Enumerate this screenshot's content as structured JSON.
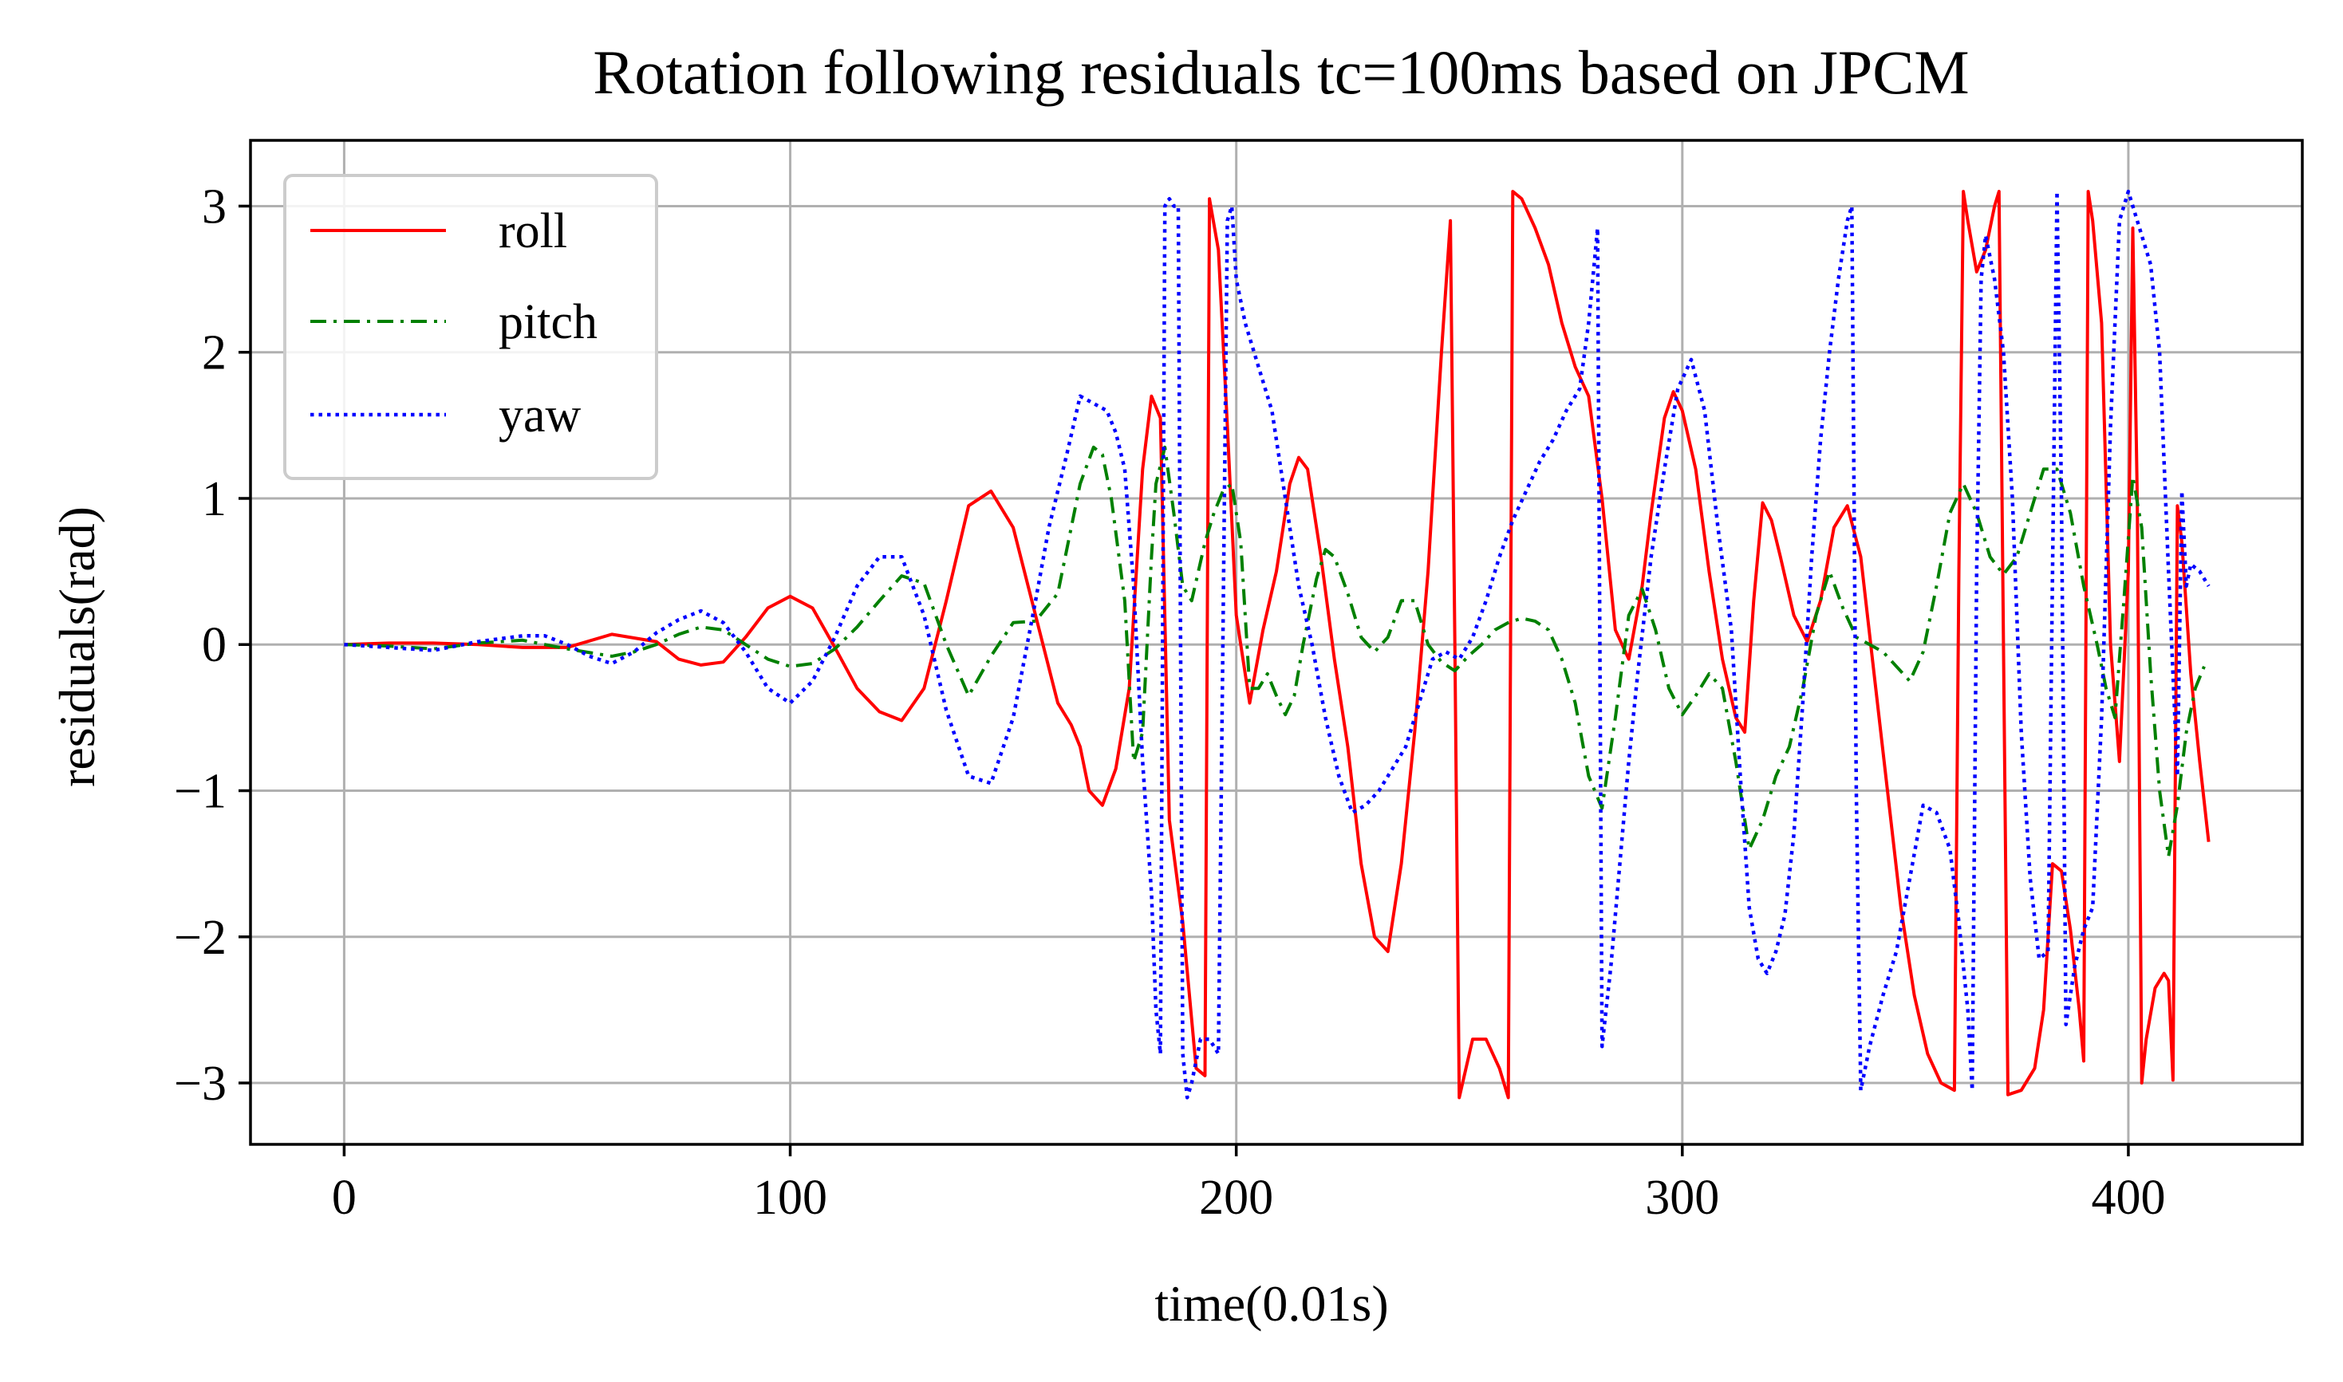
{
  "chart_data": {
    "type": "line",
    "title": "Rotation following residuals tc=100ms based on JPCM",
    "xlabel": "time(0.01s)",
    "ylabel": "residuals(rad)",
    "xlim": [
      -21,
      439
    ],
    "ylim": [
      -3.42,
      3.45
    ],
    "xticks": [
      0,
      100,
      200,
      300,
      400
    ],
    "xtick_labels": [
      "0",
      "100",
      "200",
      "300",
      "400"
    ],
    "yticks": [
      -3,
      -2,
      -1,
      0,
      1,
      2,
      3
    ],
    "ytick_labels": [
      "−3",
      "−2",
      "−1",
      "0",
      "1",
      "2",
      "3"
    ],
    "grid": true,
    "legend_position": "top-left",
    "series": [
      {
        "name": "roll",
        "color": "#ff0000",
        "linestyle": "solid",
        "x": [
          0,
          10,
          20,
          30,
          40,
          50,
          60,
          70,
          75,
          80,
          85,
          90,
          95,
          100,
          105,
          110,
          115,
          120,
          125,
          130,
          135,
          140,
          145,
          150,
          155,
          160,
          163,
          165,
          167,
          170,
          173,
          176,
          179,
          181,
          183,
          185,
          188,
          191,
          193,
          194,
          196,
          198,
          200,
          203,
          206,
          209,
          212,
          214,
          216,
          219,
          222,
          225,
          228,
          231,
          234,
          237,
          240,
          243,
          246,
          248,
          249,
          250,
          253,
          256,
          259,
          261,
          262,
          264,
          267,
          270,
          273,
          276,
          279,
          282,
          285,
          288,
          291,
          293,
          296,
          298,
          300,
          303,
          306,
          309,
          312,
          314,
          316,
          318,
          320,
          322,
          325,
          328,
          331,
          334,
          337,
          340,
          343,
          346,
          349,
          352,
          355,
          358,
          361,
          362,
          363,
          364,
          366,
          368,
          370,
          371,
          372,
          373,
          376,
          379,
          381,
          383,
          385,
          387,
          389,
          390,
          391,
          392,
          394,
          396,
          398,
          400,
          401,
          402,
          403,
          404,
          406,
          408,
          409,
          410,
          411,
          412,
          414,
          416,
          418
        ],
        "y": [
          0,
          0.01,
          0.01,
          0.0,
          -0.02,
          -0.02,
          0.07,
          0.02,
          -0.1,
          -0.14,
          -0.12,
          0.05,
          0.25,
          0.33,
          0.25,
          -0.02,
          -0.3,
          -0.46,
          -0.52,
          -0.3,
          0.3,
          0.95,
          1.05,
          0.8,
          0.2,
          -0.4,
          -0.55,
          -0.7,
          -1.0,
          -1.1,
          -0.85,
          -0.3,
          1.2,
          1.7,
          1.55,
          -1.2,
          -1.9,
          -2.9,
          -2.95,
          3.05,
          2.7,
          1.5,
          0.2,
          -0.4,
          0.1,
          0.5,
          1.1,
          1.28,
          1.2,
          0.6,
          -0.1,
          -0.7,
          -1.5,
          -2.0,
          -2.1,
          -1.5,
          -0.6,
          0.5,
          2.0,
          2.9,
          0.0,
          -3.1,
          -2.7,
          -2.7,
          -2.9,
          -3.1,
          3.1,
          3.05,
          2.85,
          2.6,
          2.2,
          1.9,
          1.7,
          1.0,
          0.1,
          -0.1,
          0.4,
          0.9,
          1.55,
          1.73,
          1.6,
          1.2,
          0.5,
          -0.1,
          -0.5,
          -0.6,
          0.3,
          0.97,
          0.85,
          0.6,
          0.2,
          0.02,
          0.3,
          0.8,
          0.95,
          0.6,
          -0.2,
          -1.0,
          -1.8,
          -2.4,
          -2.8,
          -3.0,
          -3.05,
          0.5,
          3.1,
          2.9,
          2.55,
          2.7,
          3.0,
          3.1,
          0.0,
          -3.08,
          -3.05,
          -2.9,
          -2.5,
          -1.5,
          -1.55,
          -1.95,
          -2.5,
          -2.85,
          3.1,
          2.9,
          2.2,
          0.0,
          -0.8,
          0.5,
          2.85,
          1.0,
          -3.0,
          -2.7,
          -2.35,
          -2.25,
          -2.3,
          -2.98,
          0.95,
          0.7,
          -0.2,
          -0.8,
          -1.35
        ]
      },
      {
        "name": "pitch",
        "color": "#008000",
        "linestyle": "dashdot",
        "x": [
          0,
          10,
          20,
          30,
          40,
          50,
          60,
          65,
          70,
          75,
          80,
          85,
          90,
          95,
          100,
          105,
          110,
          115,
          120,
          125,
          130,
          135,
          140,
          145,
          150,
          155,
          160,
          163,
          165,
          168,
          170,
          172,
          175,
          177,
          179,
          181,
          182,
          184,
          186,
          188,
          190,
          193,
          195,
          197,
          199,
          201,
          203,
          205,
          207,
          209,
          211,
          213,
          215,
          218,
          220,
          222,
          225,
          228,
          231,
          234,
          237,
          240,
          243,
          246,
          249,
          252,
          255,
          258,
          261,
          264,
          267,
          270,
          273,
          276,
          279,
          282,
          285,
          288,
          291,
          294,
          297,
          300,
          303,
          306,
          309,
          312,
          315,
          318,
          321,
          324,
          327,
          330,
          333,
          336,
          339,
          342,
          345,
          348,
          351,
          354,
          357,
          360,
          363,
          366,
          369,
          372,
          375,
          378,
          381,
          384,
          387,
          390,
          393,
          395,
          397,
          399,
          401,
          403,
          405,
          407,
          409,
          411,
          413,
          415,
          417
        ],
        "y": [
          0,
          -0.01,
          -0.03,
          0.01,
          0.03,
          -0.03,
          -0.08,
          -0.05,
          0.0,
          0.07,
          0.12,
          0.1,
          0.0,
          -0.1,
          -0.15,
          -0.13,
          -0.03,
          0.12,
          0.3,
          0.47,
          0.42,
          0.0,
          -0.35,
          -0.08,
          0.15,
          0.16,
          0.35,
          0.8,
          1.1,
          1.35,
          1.3,
          1.0,
          0.3,
          -0.8,
          -0.6,
          0.6,
          1.1,
          1.35,
          0.9,
          0.4,
          0.3,
          0.7,
          0.9,
          1.05,
          1.1,
          0.7,
          -0.3,
          -0.3,
          -0.2,
          -0.35,
          -0.48,
          -0.35,
          0.0,
          0.45,
          0.65,
          0.6,
          0.35,
          0.05,
          -0.05,
          0.05,
          0.3,
          0.3,
          0.0,
          -0.12,
          -0.18,
          -0.08,
          0.0,
          0.1,
          0.15,
          0.18,
          0.16,
          0.1,
          -0.1,
          -0.4,
          -0.9,
          -1.12,
          -0.5,
          0.2,
          0.38,
          0.1,
          -0.3,
          -0.48,
          -0.35,
          -0.2,
          -0.3,
          -0.8,
          -1.4,
          -1.2,
          -0.9,
          -0.7,
          -0.3,
          0.2,
          0.5,
          0.25,
          0.05,
          0.0,
          -0.05,
          -0.15,
          -0.25,
          -0.05,
          0.4,
          0.9,
          1.1,
          0.9,
          0.6,
          0.48,
          0.6,
          0.9,
          1.2,
          1.2,
          0.9,
          0.4,
          0.0,
          -0.3,
          -0.5,
          0.3,
          1.15,
          0.8,
          -0.2,
          -1.0,
          -1.45,
          -1.1,
          -0.6,
          -0.3,
          -0.15
        ]
      },
      {
        "name": "yaw",
        "color": "#0000ff",
        "linestyle": "dotted",
        "x": [
          0,
          10,
          20,
          30,
          40,
          45,
          50,
          55,
          60,
          65,
          70,
          75,
          80,
          85,
          90,
          95,
          100,
          105,
          110,
          115,
          120,
          125,
          130,
          135,
          140,
          145,
          150,
          155,
          158,
          162,
          165,
          168,
          171,
          173,
          175,
          177,
          179,
          181,
          182,
          183,
          184,
          185,
          186,
          187,
          188,
          189,
          190,
          192,
          194,
          196,
          197,
          198,
          199,
          200,
          202,
          205,
          208,
          211,
          214,
          217,
          220,
          223,
          226,
          229,
          232,
          235,
          238,
          241,
          244,
          247,
          250,
          253,
          256,
          259,
          262,
          265,
          268,
          271,
          274,
          277,
          279,
          281,
          282,
          284,
          286,
          288,
          290,
          293,
          296,
          299,
          302,
          305,
          308,
          311,
          313,
          315,
          317,
          319,
          321,
          323,
          325,
          327,
          329,
          331,
          333,
          335,
          337,
          338,
          339,
          340,
          342,
          345,
          348,
          351,
          354,
          357,
          360,
          362,
          364,
          365,
          366,
          367,
          368,
          370,
          372,
          374,
          376,
          378,
          380,
          382,
          383,
          384,
          385,
          386,
          388,
          390,
          392,
          394,
          396,
          398,
          400,
          401,
          402,
          403,
          404,
          405,
          407,
          409,
          411,
          412,
          413,
          414,
          416,
          418
        ],
        "y": [
          0,
          -0.02,
          -0.04,
          0.02,
          0.06,
          0.06,
          0.0,
          -0.08,
          -0.13,
          -0.05,
          0.08,
          0.17,
          0.23,
          0.15,
          -0.05,
          -0.3,
          -0.4,
          -0.25,
          0.05,
          0.4,
          0.6,
          0.6,
          0.2,
          -0.45,
          -0.9,
          -0.95,
          -0.5,
          0.3,
          0.8,
          1.3,
          1.7,
          1.65,
          1.6,
          1.45,
          1.2,
          0.4,
          -0.8,
          -1.7,
          -2.5,
          -2.8,
          3.0,
          3.05,
          3.0,
          3.0,
          -2.8,
          -3.1,
          -3.0,
          -2.7,
          -2.7,
          -2.8,
          0.0,
          2.9,
          3.0,
          2.5,
          2.2,
          1.9,
          1.6,
          1.0,
          0.4,
          0.0,
          -0.5,
          -0.9,
          -1.15,
          -1.1,
          -1.0,
          -0.85,
          -0.7,
          -0.4,
          -0.1,
          -0.05,
          -0.1,
          0.05,
          0.3,
          0.6,
          0.85,
          1.05,
          1.25,
          1.4,
          1.6,
          1.75,
          2.2,
          2.85,
          -2.75,
          -2.2,
          -1.5,
          -0.8,
          -0.2,
          0.6,
          1.2,
          1.75,
          1.95,
          1.6,
          0.8,
          0.1,
          -0.9,
          -1.8,
          -2.15,
          -2.25,
          -2.1,
          -1.85,
          -1.3,
          -0.4,
          0.6,
          1.4,
          2.0,
          2.5,
          2.9,
          3.0,
          -1.0,
          -3.05,
          -2.75,
          -2.4,
          -2.1,
          -1.6,
          -1.1,
          -1.15,
          -1.4,
          -1.9,
          -2.5,
          -3.05,
          0.5,
          2.5,
          2.8,
          2.5,
          2.0,
          1.0,
          -0.6,
          -1.6,
          -2.15,
          -2.1,
          0.5,
          3.1,
          1.0,
          -2.6,
          -2.2,
          -1.95,
          -1.8,
          -0.5,
          1.5,
          2.9,
          3.1,
          3.0,
          2.9,
          2.8,
          2.7,
          2.6,
          2.0,
          0.5,
          -0.9,
          1.05,
          0.4,
          0.55,
          0.5,
          0.4
        ]
      }
    ]
  }
}
